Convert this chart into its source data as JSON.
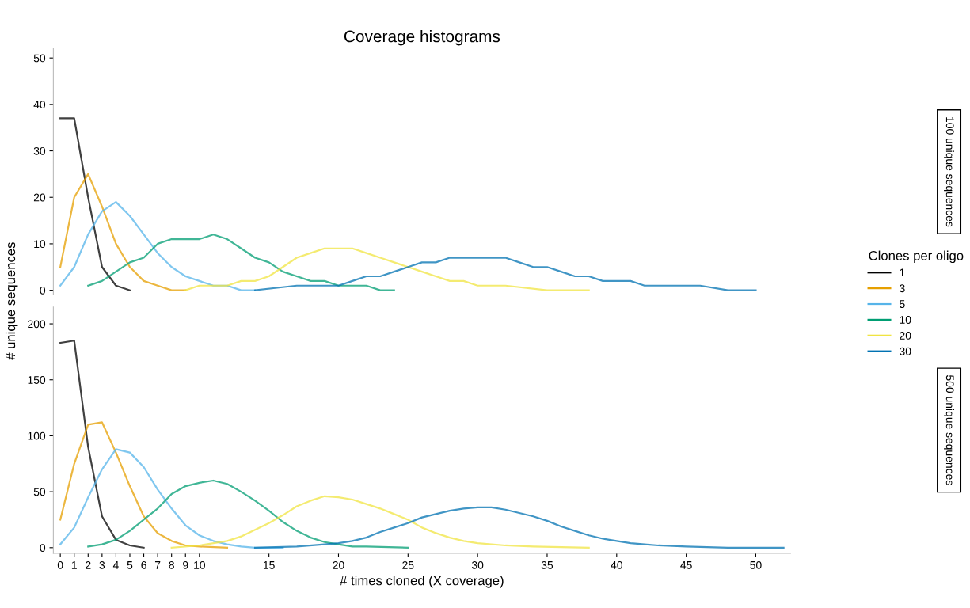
{
  "chart_data": [
    {
      "type": "line",
      "title": "Coverage histograms",
      "ylabel": "# unique sequences",
      "legend_title": "Clones per oligo",
      "legend": "right",
      "grid": false,
      "tick_labels": "y",
      "annotations": [
        "100 unique sequences"
      ],
      "xlim": [
        -0.5,
        52.5
      ],
      "xticks": [
        0,
        1,
        2,
        3,
        4,
        5,
        6,
        7,
        8,
        9,
        10,
        15,
        20,
        25,
        30,
        35,
        40,
        45,
        50
      ],
      "ylim": [
        -1,
        52
      ],
      "yticks": [
        0,
        10,
        20,
        30,
        40,
        50
      ],
      "series": [
        {
          "name": "1",
          "color": "#000000",
          "x": [
            0,
            1,
            2,
            3,
            4,
            5
          ],
          "values": [
            37,
            37,
            20,
            5,
            1,
            0
          ]
        },
        {
          "name": "3",
          "color": "#e69f00",
          "x": [
            0,
            1,
            2,
            3,
            4,
            5,
            6,
            7,
            8,
            9
          ],
          "values": [
            5,
            20,
            25,
            18,
            10,
            5,
            2,
            1,
            0,
            0
          ]
        },
        {
          "name": "5",
          "color": "#56b4e9",
          "x": [
            0,
            1,
            2,
            3,
            4,
            5,
            6,
            7,
            8,
            9,
            10,
            11,
            12,
            13,
            14
          ],
          "values": [
            1,
            5,
            12,
            17,
            19,
            16,
            12,
            8,
            5,
            3,
            2,
            1,
            1,
            0,
            0
          ]
        },
        {
          "name": "10",
          "color": "#009e73",
          "x": [
            2,
            3,
            4,
            5,
            6,
            7,
            8,
            9,
            10,
            11,
            12,
            13,
            14,
            15,
            16,
            17,
            18,
            19,
            20,
            21,
            22,
            23,
            24
          ],
          "values": [
            1,
            2,
            4,
            6,
            7,
            10,
            11,
            11,
            11,
            12,
            11,
            9,
            7,
            6,
            4,
            3,
            2,
            2,
            1,
            1,
            1,
            0,
            0
          ]
        },
        {
          "name": "20",
          "color": "#f0e442",
          "x": [
            9,
            10,
            12,
            13,
            14,
            15,
            16,
            17,
            18,
            19,
            20,
            21,
            22,
            23,
            24,
            25,
            26,
            27,
            28,
            29,
            30,
            32,
            35,
            38
          ],
          "values": [
            0,
            1,
            1,
            2,
            2,
            3,
            5,
            7,
            8,
            9,
            9,
            9,
            8,
            7,
            6,
            5,
            4,
            3,
            2,
            2,
            1,
            1,
            0,
            0
          ]
        },
        {
          "name": "30",
          "color": "#0072b2",
          "x": [
            14,
            17,
            19,
            20,
            21,
            22,
            23,
            24,
            25,
            26,
            27,
            28,
            29,
            30,
            31,
            32,
            33,
            34,
            35,
            36,
            37,
            38,
            39,
            40,
            41,
            42,
            44,
            46,
            48,
            50
          ],
          "values": [
            0,
            1,
            1,
            1,
            2,
            3,
            3,
            4,
            5,
            6,
            6,
            7,
            7,
            7,
            7,
            7,
            6,
            5,
            5,
            4,
            3,
            3,
            2,
            2,
            2,
            1,
            1,
            1,
            0,
            0
          ]
        }
      ]
    },
    {
      "type": "line",
      "xlabel": "# times cloned (X coverage)",
      "grid": false,
      "annotations": [
        "500 unique sequences"
      ],
      "xlim": [
        -0.5,
        52.5
      ],
      "xticks": [
        0,
        1,
        2,
        3,
        4,
        5,
        6,
        7,
        8,
        9,
        10,
        15,
        20,
        25,
        30,
        35,
        40,
        45,
        50
      ],
      "ylim": [
        -5,
        215
      ],
      "yticks": [
        0,
        50,
        100,
        150,
        200
      ],
      "series": [
        {
          "color": "#000000",
          "x": [
            0,
            1,
            2,
            3,
            4,
            5,
            6
          ],
          "values": [
            183,
            185,
            90,
            28,
            7,
            2,
            0
          ]
        },
        {
          "color": "#e69f00",
          "x": [
            0,
            1,
            2,
            3,
            4,
            5,
            6,
            7,
            8,
            9,
            10,
            12
          ],
          "values": [
            25,
            75,
            110,
            112,
            85,
            55,
            28,
            13,
            6,
            2,
            1,
            0
          ]
        },
        {
          "color": "#56b4e9",
          "x": [
            0,
            1,
            2,
            3,
            4,
            5,
            6,
            7,
            8,
            9,
            10,
            11,
            12,
            13,
            14,
            16
          ],
          "values": [
            3,
            18,
            45,
            70,
            88,
            85,
            72,
            52,
            35,
            20,
            11,
            6,
            3,
            1,
            0,
            0
          ]
        },
        {
          "color": "#009e73",
          "x": [
            2,
            3,
            4,
            5,
            6,
            7,
            8,
            9,
            10,
            11,
            12,
            13,
            14,
            15,
            16,
            17,
            18,
            19,
            20,
            21,
            22,
            25
          ],
          "values": [
            1,
            3,
            7,
            15,
            25,
            35,
            48,
            55,
            58,
            60,
            57,
            50,
            42,
            33,
            23,
            15,
            9,
            5,
            3,
            1,
            1,
            0
          ]
        },
        {
          "color": "#f0e442",
          "x": [
            8,
            10,
            12,
            13,
            14,
            15,
            16,
            17,
            18,
            19,
            20,
            21,
            22,
            23,
            24,
            25,
            26,
            27,
            28,
            29,
            30,
            32,
            34,
            38
          ],
          "values": [
            0,
            2,
            6,
            10,
            16,
            22,
            29,
            37,
            42,
            46,
            45,
            43,
            39,
            35,
            30,
            25,
            18,
            13,
            9,
            6,
            4,
            2,
            1,
            0
          ]
        },
        {
          "color": "#0072b2",
          "x": [
            14,
            17,
            19,
            20,
            21,
            22,
            23,
            24,
            25,
            26,
            27,
            28,
            29,
            30,
            31,
            32,
            33,
            34,
            35,
            36,
            37,
            38,
            39,
            40,
            41,
            42,
            43,
            45,
            48,
            52
          ],
          "values": [
            0,
            1,
            3,
            4,
            6,
            9,
            14,
            18,
            22,
            27,
            30,
            33,
            35,
            36,
            36,
            34,
            31,
            28,
            24,
            19,
            15,
            11,
            8,
            6,
            4,
            3,
            2,
            1,
            0,
            0
          ]
        }
      ]
    }
  ]
}
